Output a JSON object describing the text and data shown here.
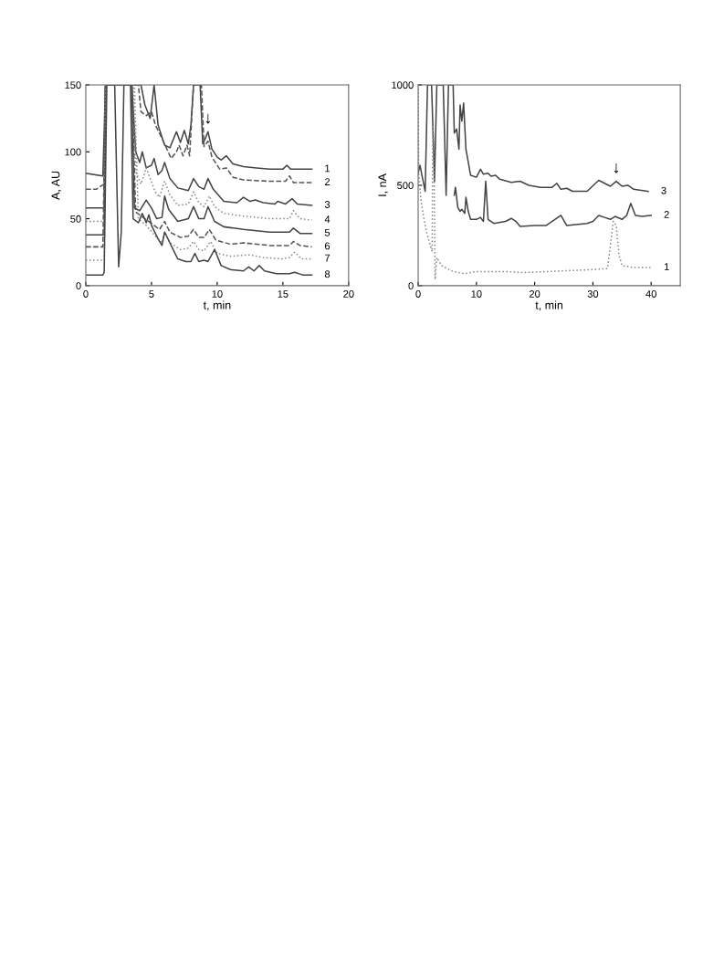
{
  "chart_data": [
    {
      "type": "line",
      "xlabel": "t, min",
      "ylabel": "A, AU",
      "xlim": [
        0,
        20
      ],
      "ylim": [
        0,
        150
      ],
      "xticks": [
        0,
        5,
        10,
        15,
        20
      ],
      "yticks": [
        0,
        50,
        100,
        150
      ],
      "grid": false,
      "marker": "none",
      "annotations": [
        {
          "text": "↓",
          "x": 9.3,
          "y": 115
        }
      ],
      "series": [
        {
          "name": "1",
          "color": "#444444",
          "line_style": "solid",
          "x": [
            0,
            1.3,
            1.5,
            4.2,
            4.5,
            4.9,
            5.2,
            5.5,
            6.0,
            6.4,
            6.9,
            7.2,
            7.5,
            7.8,
            8.0,
            8.2,
            8.7,
            8.9,
            9.1,
            9.3,
            9.6,
            10.0,
            10.3,
            10.7,
            11.2,
            12,
            13,
            14,
            15,
            15.3,
            15.6,
            17.2
          ],
          "values": [
            84,
            82,
            150,
            150,
            135,
            125,
            150,
            120,
            105,
            103,
            115,
            107,
            116,
            106,
            120,
            150,
            150,
            106,
            110,
            115,
            102,
            96,
            94,
            97,
            91,
            89,
            88,
            87,
            87,
            90,
            87,
            87
          ]
        },
        {
          "name": "2",
          "color": "#555555",
          "line_style": "dashed",
          "x": [
            0,
            0.8,
            1.4,
            1.5,
            4.0,
            4.2,
            4.6,
            5.0,
            5.3,
            5.8,
            6.5,
            6.9,
            7.1,
            7.4,
            7.7,
            7.9,
            8.2,
            8.8,
            9.0,
            9.3,
            9.6,
            10.2,
            10.7,
            11.2,
            12,
            14,
            15.2,
            15.5,
            15.8,
            17.2
          ],
          "values": [
            72,
            72,
            76,
            150,
            150,
            130,
            127,
            130,
            120,
            110,
            95,
            100,
            105,
            97,
            105,
            97,
            150,
            150,
            104,
            108,
            96,
            87,
            88,
            81,
            79,
            78,
            78,
            82,
            77,
            77
          ]
        },
        {
          "name": "3",
          "color": "#444444",
          "line_style": "solid",
          "x": [
            0,
            1.4,
            1.5,
            3.5,
            3.8,
            4.1,
            4.3,
            4.6,
            5.0,
            5.2,
            5.5,
            5.8,
            6.0,
            6.4,
            7.0,
            7.8,
            8.2,
            8.6,
            9.0,
            9.3,
            9.7,
            10.5,
            11.5,
            12.0,
            12.5,
            12.9,
            13.5,
            14.4,
            14.6,
            15.2,
            15.7,
            16.1,
            17.2
          ],
          "values": [
            58,
            58,
            150,
            150,
            100,
            92,
            100,
            88,
            90,
            95,
            83,
            86,
            92,
            80,
            73,
            71,
            80,
            74,
            72,
            80,
            72,
            63,
            62,
            66,
            63,
            64,
            62,
            61,
            63,
            61,
            65,
            61,
            60
          ]
        },
        {
          "name": "4",
          "color": "#888888",
          "line_style": "dotted",
          "x": [
            0,
            1.4,
            1.5,
            3.6,
            3.8,
            4.2,
            4.6,
            4.9,
            5.3,
            5.6,
            6.0,
            6.4,
            7.0,
            7.8,
            8.2,
            8.6,
            9.0,
            9.4,
            9.8,
            10.5,
            12,
            14,
            15.5,
            15.8,
            16.3,
            17.2
          ],
          "values": [
            48,
            48,
            150,
            150,
            85,
            76,
            88,
            80,
            70,
            66,
            78,
            68,
            60,
            61,
            70,
            62,
            59,
            67,
            59,
            54,
            52,
            50,
            50,
            56,
            50,
            49
          ]
        },
        {
          "name": "5",
          "color": "#444444",
          "line_style": "solid",
          "x": [
            0,
            1.4,
            1.5,
            3.5,
            3.7,
            4.1,
            4.6,
            5.0,
            5.4,
            5.8,
            6.0,
            6.3,
            7.0,
            7.8,
            8.2,
            8.6,
            9.0,
            9.3,
            9.8,
            10.5,
            12,
            14,
            15.5,
            15.8,
            16.3,
            17.2
          ],
          "values": [
            38,
            38,
            150,
            150,
            58,
            56,
            64,
            58,
            50,
            51,
            67,
            57,
            48,
            50,
            59,
            50,
            50,
            59,
            48,
            44,
            42,
            40,
            40,
            43,
            39,
            39
          ]
        },
        {
          "name": "6",
          "color": "#555555",
          "line_style": "dashed",
          "x": [
            0,
            1.3,
            1.5,
            3.5,
            3.8,
            4.5,
            5.2,
            5.6,
            6.0,
            6.4,
            7.2,
            7.8,
            8.2,
            8.6,
            9.0,
            9.4,
            9.9,
            11,
            12,
            13,
            14,
            15.5,
            15.8,
            16.3,
            17.2
          ],
          "values": [
            29,
            29,
            150,
            150,
            55,
            50,
            45,
            42,
            48,
            40,
            36,
            37,
            42,
            36,
            36,
            42,
            34,
            31,
            32,
            31,
            30,
            30,
            33,
            30,
            29
          ]
        },
        {
          "name": "7",
          "color": "#888888",
          "line_style": "dotted",
          "x": [
            0,
            1.4,
            1.5,
            3.7,
            4.0,
            4.6,
            5.3,
            5.8,
            6.0,
            6.4,
            7.2,
            7.8,
            8.2,
            8.6,
            9.0,
            9.5,
            10,
            11,
            12.5,
            13.5,
            15,
            15.5,
            15.9,
            16.4,
            17.2
          ],
          "values": [
            19,
            19,
            150,
            150,
            50,
            45,
            37,
            32,
            40,
            32,
            27,
            28,
            33,
            27,
            26,
            33,
            24,
            22,
            23,
            21,
            20,
            21,
            25,
            20,
            20
          ]
        },
        {
          "name": "8",
          "color": "#444444",
          "line_style": "solid",
          "x": [
            0,
            1.3,
            1.4,
            1.6,
            2.2,
            2.5,
            2.7,
            2.9,
            3.4,
            3.6,
            4.0,
            4.3,
            4.6,
            4.8,
            5.0,
            5.5,
            5.8,
            6.0,
            6.4,
            7.0,
            7.6,
            8.0,
            8.3,
            8.6,
            9.0,
            9.3,
            9.8,
            10.3,
            11.0,
            12,
            12.4,
            12.8,
            13.2,
            13.6,
            14.5,
            15.5,
            15.9,
            16.5,
            17.2
          ],
          "values": [
            8,
            8,
            10,
            150,
            150,
            14,
            40,
            150,
            150,
            50,
            47,
            54,
            47,
            53,
            45,
            35,
            30,
            40,
            32,
            20,
            18,
            18,
            24,
            18,
            19,
            18,
            27,
            15,
            12,
            11,
            14,
            11,
            15,
            11,
            9,
            9,
            10,
            8,
            8
          ]
        }
      ]
    },
    {
      "type": "line",
      "xlabel": "t, min",
      "ylabel": "I, nA",
      "xlim": [
        0,
        45
      ],
      "ylim": [
        0,
        1000
      ],
      "xticks": [
        0,
        10,
        20,
        30,
        40
      ],
      "yticks": [
        0,
        500,
        1000
      ],
      "grid": false,
      "marker": "none",
      "annotations": [
        {
          "text": "↓",
          "x": 34,
          "y": 520
        }
      ],
      "series": [
        {
          "name": "3",
          "color": "#444444",
          "line_style": "solid",
          "x": [
            0,
            0.3,
            1.2,
            1.6,
            2.3,
            2.8,
            3.2,
            4.3,
            4.8,
            5.2,
            6.0,
            6.2,
            6.6,
            7.0,
            7.2,
            7.5,
            7.8,
            8.2,
            9,
            10,
            10.7,
            11.2,
            12,
            12.5,
            13.3,
            14,
            16,
            17.5,
            19,
            21,
            23,
            23.8,
            24.5,
            25.5,
            26.5,
            29,
            31,
            32,
            33,
            34,
            35,
            36,
            37,
            39.5
          ],
          "values": [
            560,
            600,
            470,
            1000,
            1000,
            520,
            1000,
            1000,
            450,
            1000,
            1000,
            760,
            780,
            680,
            900,
            820,
            910,
            680,
            550,
            540,
            580,
            555,
            560,
            545,
            550,
            530,
            515,
            520,
            500,
            490,
            490,
            510,
            480,
            485,
            470,
            470,
            525,
            510,
            495,
            520,
            495,
            500,
            480,
            470
          ]
        },
        {
          "name": "2",
          "color": "#444444",
          "line_style": "solid",
          "x": [
            6.2,
            6.4,
            6.8,
            7.2,
            7.5,
            8.0,
            8.2,
            8.6,
            9.0,
            10,
            10.7,
            11.2,
            11.6,
            12.0,
            13,
            15,
            16,
            16.8,
            17.5,
            20,
            22,
            24.5,
            25.5,
            29,
            30,
            31,
            32,
            33,
            33.8,
            35,
            35.8,
            36.5,
            37.3,
            38.5,
            40
          ],
          "values": [
            450,
            490,
            390,
            370,
            380,
            360,
            440,
            370,
            330,
            330,
            340,
            320,
            520,
            330,
            310,
            320,
            335,
            320,
            295,
            300,
            300,
            350,
            300,
            310,
            320,
            350,
            340,
            330,
            345,
            330,
            350,
            410,
            350,
            345,
            350
          ]
        },
        {
          "name": "1",
          "color": "#888888",
          "line_style": "dotted",
          "x": [
            0,
            0.1,
            0.5,
            1,
            1.5,
            2,
            2.4,
            2.5,
            2.7,
            2.9,
            3.2,
            4,
            6,
            8,
            10,
            12,
            15,
            18,
            22,
            26,
            30,
            32.5,
            33,
            33.5,
            34,
            34.5,
            35,
            37,
            40
          ],
          "values": [
            1000,
            560,
            420,
            330,
            260,
            210,
            170,
            800,
            700,
            30,
            140,
            100,
            70,
            60,
            70,
            70,
            70,
            65,
            70,
            75,
            80,
            85,
            200,
            320,
            300,
            150,
            100,
            90,
            90
          ]
        }
      ]
    }
  ]
}
